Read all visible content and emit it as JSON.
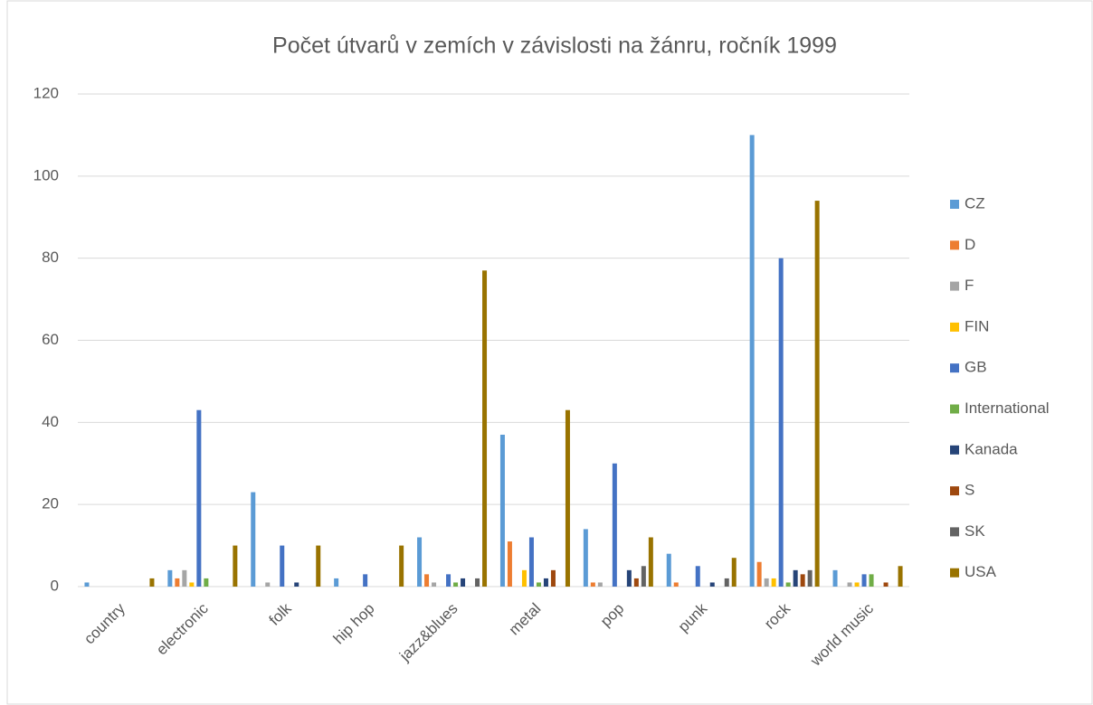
{
  "chart_data": {
    "type": "bar",
    "title": "Počet útvarů v zemích v závislosti na žánru, ročník 1999",
    "categories": [
      "country",
      "electronic",
      "folk",
      "hip hop",
      "jazz&blues",
      "metal",
      "pop",
      "punk",
      "rock",
      "world music"
    ],
    "series": [
      {
        "name": "CZ",
        "color": "#5b9bd5",
        "values": [
          1,
          4,
          23,
          2,
          12,
          37,
          14,
          8,
          110,
          4
        ]
      },
      {
        "name": "D",
        "color": "#ed7d31",
        "values": [
          0,
          2,
          0,
          0,
          3,
          11,
          1,
          1,
          6,
          0
        ]
      },
      {
        "name": "F",
        "color": "#a5a5a5",
        "values": [
          0,
          4,
          1,
          0,
          1,
          0,
          1,
          0,
          2,
          1
        ]
      },
      {
        "name": "FIN",
        "color": "#ffc000",
        "values": [
          0,
          1,
          0,
          0,
          0,
          4,
          0,
          0,
          2,
          1
        ]
      },
      {
        "name": "GB",
        "color": "#4472c4",
        "values": [
          0,
          43,
          10,
          3,
          3,
          12,
          30,
          5,
          80,
          3
        ]
      },
      {
        "name": "International",
        "color": "#70ad47",
        "values": [
          0,
          2,
          0,
          0,
          1,
          1,
          0,
          0,
          1,
          3
        ]
      },
      {
        "name": "Kanada",
        "color": "#264478",
        "values": [
          0,
          0,
          1,
          0,
          2,
          2,
          4,
          1,
          4,
          0
        ]
      },
      {
        "name": "S",
        "color": "#9e480e",
        "values": [
          0,
          0,
          0,
          0,
          0,
          4,
          2,
          0,
          3,
          1
        ]
      },
      {
        "name": "SK",
        "color": "#636363",
        "values": [
          0,
          0,
          0,
          0,
          2,
          0,
          5,
          2,
          4,
          0
        ]
      },
      {
        "name": "USA",
        "color": "#997300",
        "values": [
          2,
          10,
          10,
          10,
          77,
          43,
          12,
          7,
          94,
          5
        ]
      }
    ],
    "ylim": [
      0,
      120
    ],
    "yticks": [
      0,
      20,
      40,
      60,
      80,
      100,
      120
    ],
    "grid": true,
    "legend": "right"
  }
}
